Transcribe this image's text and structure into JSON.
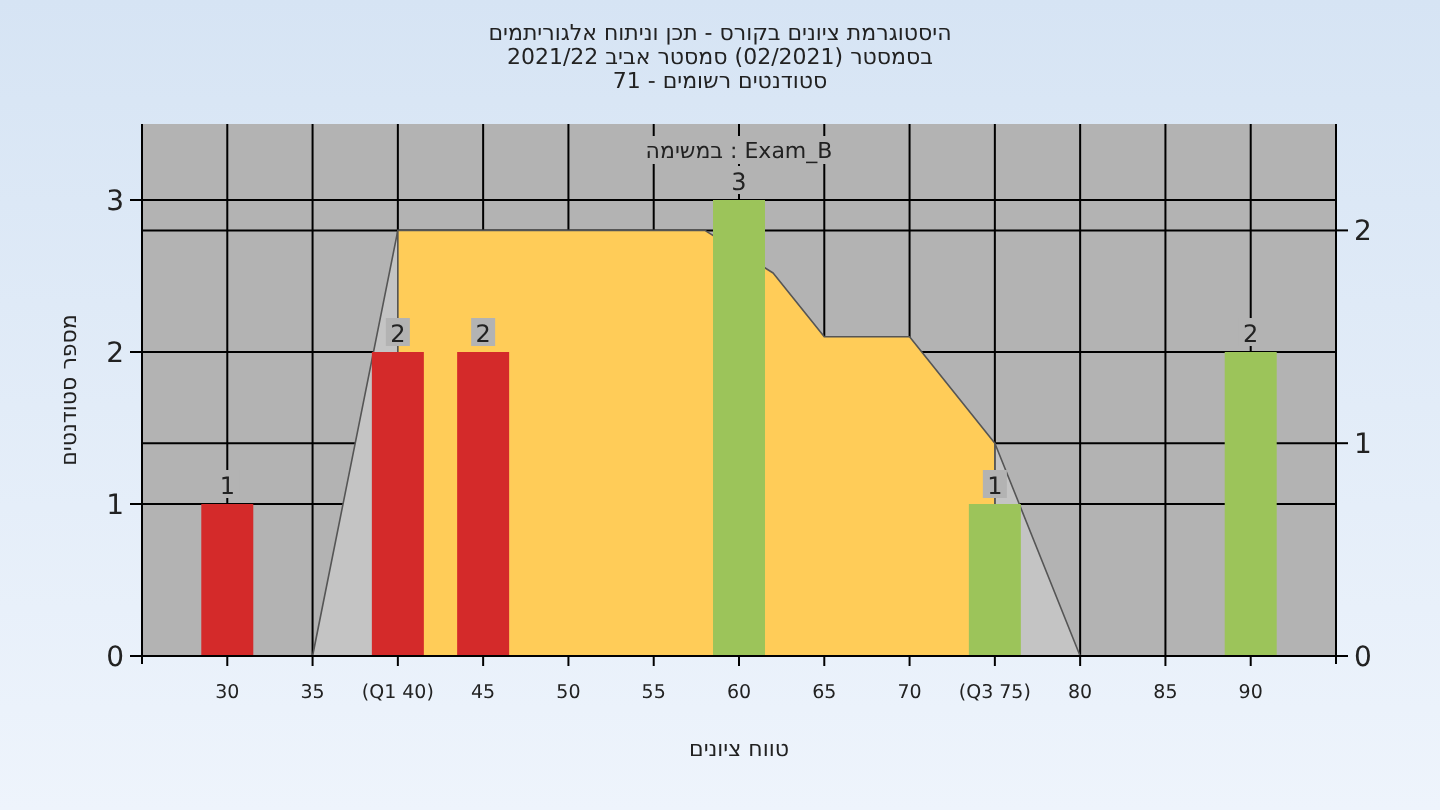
{
  "chart_data": {
    "type": "bar",
    "title": "היסטוגרמת ציונים בקורס - תכן וניתוח אלגוריתמים",
    "subtitle": "בסמסטר  (02/2021)  סמסטר אביב 2021/22\nסטודנטים רשומים - 71",
    "xlabel": "טווח ציונים",
    "ylabel": "מספר סטודנטים",
    "annotations": [
      "במשימה : Exam_B"
    ],
    "xlim": [
      25,
      95
    ],
    "xticks": [
      30,
      35,
      {
        "value": 40,
        "label": "(Q1 40)"
      },
      45,
      50,
      55,
      60,
      65,
      70,
      {
        "value": 75,
        "label": "(Q3 75)"
      },
      80,
      85,
      90
    ],
    "ylim": [
      0,
      3.5
    ],
    "yticks": [
      0,
      1,
      2,
      3
    ],
    "y2lim": [
      0,
      2.5
    ],
    "y2ticks": [
      0,
      1,
      2
    ],
    "grid": true,
    "series": [
      {
        "type": "area",
        "axis": "y2",
        "color": "#c4c4c4",
        "x": [
          35,
          40
        ],
        "values": [
          0,
          2
        ]
      },
      {
        "type": "area",
        "axis": "y2",
        "color": "#c4c4c4",
        "x": [
          75,
          80
        ],
        "values": [
          1,
          0
        ]
      },
      {
        "type": "area",
        "axis": "y2",
        "color": "#ffcc58",
        "x": [
          40,
          45,
          50,
          55,
          58,
          62,
          65,
          70,
          75
        ],
        "values": [
          2,
          2,
          2,
          2,
          2,
          1.8,
          1.5,
          1.5,
          1
        ]
      },
      {
        "x": [
          30,
          40,
          45,
          60,
          75,
          90
        ],
        "values": [
          1,
          2,
          2,
          3,
          1,
          2
        ],
        "value_labels": [
          "1",
          "2",
          "2",
          "3",
          "1",
          "2"
        ],
        "colors": [
          "#d42a2a",
          "#d42a2a",
          "#d42a2a",
          "#9cc45a",
          "#9cc45a",
          "#9cc45a"
        ]
      }
    ]
  }
}
